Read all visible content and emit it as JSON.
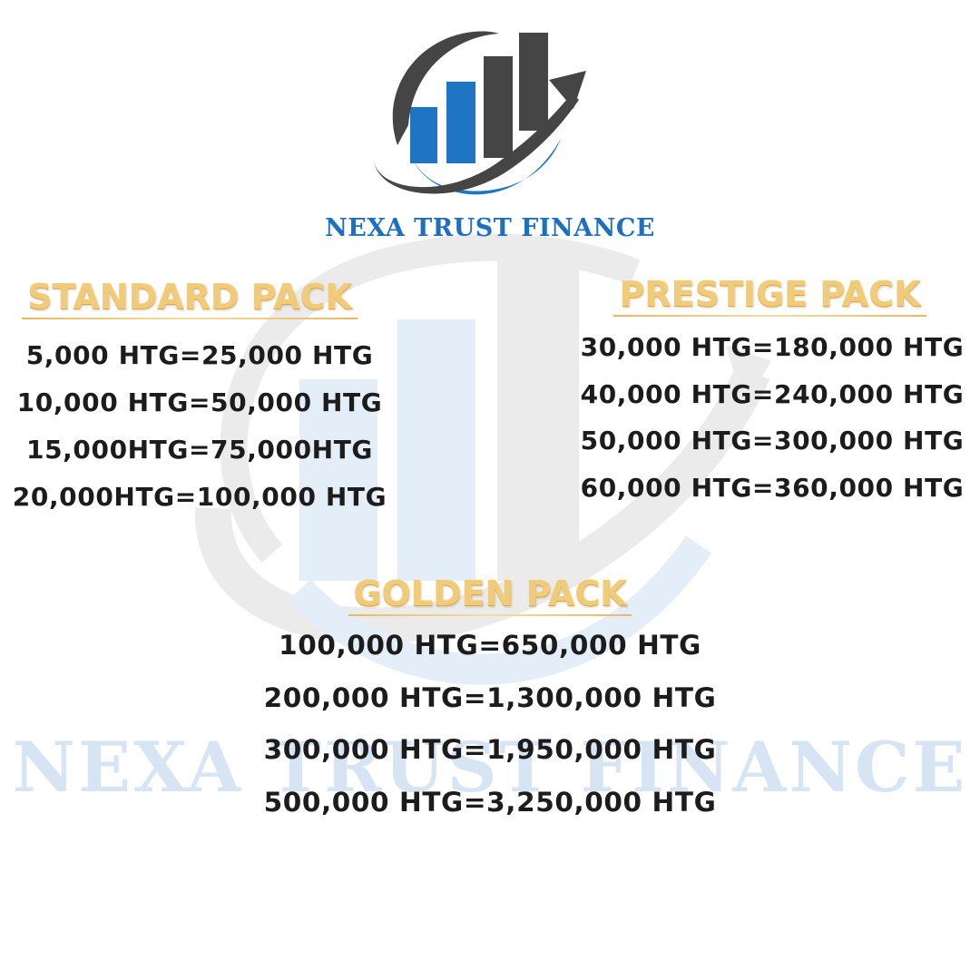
{
  "brand": {
    "name": "NEXA TRUST FINANCE",
    "watermark_text": "NEXA TRUST FINANCE",
    "colors": {
      "blue": "#1f6fbf",
      "gray": "#4a4a4a",
      "gold": "#efcb7a",
      "text": "#1c1c1c"
    }
  },
  "logo": {
    "icon": "bar-chart-growth-arrow-icon"
  },
  "packs": {
    "standard": {
      "title": "STANDARD PACK",
      "rates": [
        "5,000 HTG=25,000 HTG",
        "10,000 HTG=50,000 HTG",
        "15,000HTG=75,000HTG",
        "20,000HTG=100,000 HTG"
      ]
    },
    "prestige": {
      "title": "PRESTIGE PACK",
      "rates": [
        "30,000 HTG=180,000 HTG",
        "40,000 HTG=240,000 HTG",
        "50,000 HTG=300,000 HTG",
        "60,000 HTG=360,000 HTG"
      ]
    },
    "golden": {
      "title": "GOLDEN PACK",
      "rates": [
        "100,000 HTG=650,000 HTG",
        "200,000 HTG=1,300,000 HTG",
        "300,000 HTG=1,950,000 HTG",
        "500,000 HTG=3,250,000 HTG"
      ]
    }
  }
}
